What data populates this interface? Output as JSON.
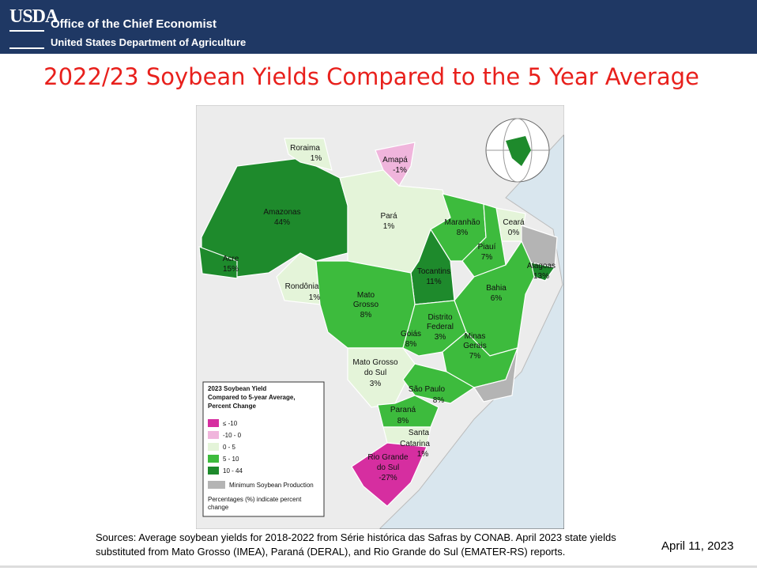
{
  "header": {
    "logo": "USDA",
    "office": "Office of the Chief Economist",
    "department": "United States Department of Agriculture"
  },
  "title": "2022/23 Soybean Yields Compared to the 5 Year Average",
  "map": {
    "states": [
      {
        "lines": [
          "Roraima"
        ],
        "change": "1%"
      },
      {
        "lines": [
          "Amapá"
        ],
        "change": "-1%"
      },
      {
        "lines": [
          "Amazonas"
        ],
        "change": "44%"
      },
      {
        "lines": [
          "Acre"
        ],
        "change": "15%"
      },
      {
        "lines": [
          "Pará"
        ],
        "change": "1%"
      },
      {
        "lines": [
          "Maranhão"
        ],
        "change": "8%"
      },
      {
        "lines": [
          "Ceará"
        ],
        "change": "0%"
      },
      {
        "lines": [
          "Piauí"
        ],
        "change": "7%"
      },
      {
        "lines": [
          "Tocantins"
        ],
        "change": "11%"
      },
      {
        "lines": [
          "Alagoas"
        ],
        "change": "13%"
      },
      {
        "lines": [
          "Bahia"
        ],
        "change": "6%"
      },
      {
        "lines": [
          "Rondônia"
        ],
        "change": "1%"
      },
      {
        "lines": [
          "Mato",
          "Grosso"
        ],
        "change": "8%"
      },
      {
        "lines": [
          "Distrito",
          "Federal"
        ],
        "change": "3%"
      },
      {
        "lines": [
          "Goiás"
        ],
        "change": "8%"
      },
      {
        "lines": [
          "Minas",
          "Gerais"
        ],
        "change": "7%"
      },
      {
        "lines": [
          "Mato Grosso",
          "do Sul"
        ],
        "change": "3%"
      },
      {
        "lines": [
          "São Paulo"
        ],
        "change": "8%"
      },
      {
        "lines": [
          "Paraná"
        ],
        "change": "8%"
      },
      {
        "lines": [
          "Santa",
          "Catarina"
        ],
        "change": "1%"
      },
      {
        "lines": [
          "Rio Grande",
          "do Sul"
        ],
        "change": "-27%"
      }
    ],
    "legend": {
      "title_lines": [
        "2023 Soybean Yield",
        "Compared to 5-year Average,",
        "Percent Change"
      ],
      "classes": [
        "≤ -10",
        "-10 - 0",
        "0 - 5",
        "5 - 10",
        "10 - 44"
      ],
      "minimum": "Minimum Soybean Production",
      "note_lines": [
        "Percentages (%) indicate percent",
        "change"
      ]
    }
  },
  "sources": [
    "Sources: Average soybean yields for 2018-2022 from Série histórica das Safras by CONAB.  April 2023 state yields",
    "substituted from Mato Grosso (IMEA), Paraná (DERAL),  and Rio Grande do Sul (EMATER-RS) reports."
  ],
  "date": "April 11, 2023"
}
